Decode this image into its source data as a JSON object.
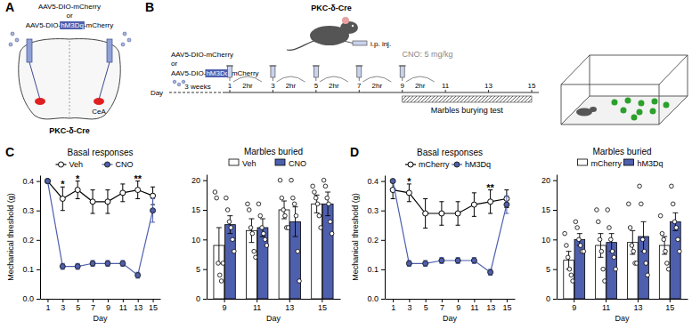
{
  "panel_labels": [
    "A",
    "B",
    "C",
    "D"
  ],
  "diagram_a": {
    "virus_1": "AAV5-DIO-mCherry",
    "or": "or",
    "virus_2": [
      "AAV5-DIO-",
      "hM3Dq",
      "-mCherry"
    ],
    "region": "CeA",
    "mouse_line": "PKC-δ-Cre"
  },
  "diagram_b": {
    "virus_1": "AAV5-DIO-mCherry",
    "or": "or",
    "virus_2": [
      "AAV5-DIO-",
      "hM3Dq",
      "-mCherry"
    ],
    "mouse_line": "PKC-δ-Cre",
    "route": "i.p. inj.",
    "dose": "CNO: 5 mg/kg",
    "day_label": "Day",
    "wait": "3 weeks",
    "interval": "2hr",
    "days": [
      1,
      3,
      5,
      7,
      9,
      11,
      13,
      15
    ],
    "injection_days": [
      1,
      3,
      5,
      7,
      9
    ],
    "test_days": [
      9,
      15
    ],
    "test": "Marbles burying test"
  },
  "chart_data": [
    {
      "type": "line",
      "title": "Basal responses",
      "x_label": "Day",
      "y_label": "Mechanical threshold (g)",
      "x": [
        1,
        3,
        5,
        7,
        9,
        11,
        13,
        15
      ],
      "xlim": [
        0,
        16
      ],
      "xticks": [
        1,
        3,
        5,
        7,
        9,
        11,
        13,
        15
      ],
      "ylim": [
        0,
        0.42
      ],
      "yticks": [
        {
          "value": 0,
          "label": "0.0"
        },
        {
          "value": 0.1,
          "label": "0.1"
        },
        {
          "value": 0.2,
          "label": "0.2"
        },
        {
          "value": 0.3,
          "label": "0.3"
        },
        {
          "value": 0.4,
          "label": "0.4"
        }
      ],
      "legend": "top",
      "series": [
        {
          "name": "Veh",
          "color": "#000000",
          "marker": "open-circle",
          "values": [
            0.4,
            0.34,
            0.37,
            0.33,
            0.33,
            0.36,
            0.37,
            0.35
          ],
          "errors": [
            0,
            0.04,
            0.03,
            0.04,
            0.04,
            0.03,
            0.03,
            0.03
          ]
        },
        {
          "name": "CNO",
          "color": "#4e5fae",
          "marker": "filled-circle",
          "values": [
            0.4,
            0.11,
            0.11,
            0.12,
            0.12,
            0.12,
            0.08,
            0.3
          ],
          "errors": [
            0,
            0.01,
            0.01,
            0.01,
            0.01,
            0.01,
            0.01,
            0.04
          ]
        }
      ],
      "annotations": [
        {
          "x": 3,
          "text": "*"
        },
        {
          "x": 5,
          "text": "*"
        },
        {
          "x": 13,
          "text": "**"
        }
      ]
    },
    {
      "type": "bar",
      "title": "Marbles buried",
      "x_label": "Day",
      "categories": [
        "9",
        "11",
        "13",
        "15"
      ],
      "ylim": [
        0,
        21
      ],
      "yticks": [
        0,
        5,
        10,
        15,
        20
      ],
      "legend": "top",
      "series": [
        {
          "name": "Veh",
          "color": "#ffffff",
          "values": [
            9,
            11.5,
            15,
            16
          ],
          "errors": [
            3,
            2,
            1.5,
            1.5
          ],
          "points": [
            [
              18,
              17,
              6,
              4,
              3,
              6
            ],
            [
              16,
              15,
              12,
              11,
              8,
              7
            ],
            [
              20,
              17,
              15,
              14,
              12,
              12
            ],
            [
              19,
              18,
              17,
              16,
              14,
              12
            ]
          ]
        },
        {
          "name": "CNO",
          "color": "#4e5fae",
          "values": [
            12.5,
            12,
            13,
            16
          ],
          "errors": [
            1.5,
            1.5,
            2.5,
            2
          ],
          "points": [
            [
              17,
              15,
              13,
              12,
              10,
              8
            ],
            [
              16,
              14,
              12,
              11,
              10,
              9
            ],
            [
              20,
              17,
              16,
              14,
              8,
              3
            ],
            [
              20,
              19,
              17,
              16,
              13,
              11
            ]
          ]
        }
      ]
    },
    {
      "type": "line",
      "title": "Basal responses",
      "x_label": "Day",
      "y_label": "Mechanical threshold (g)",
      "x": [
        1,
        3,
        5,
        7,
        9,
        11,
        13,
        15
      ],
      "xlim": [
        0,
        16
      ],
      "xticks": [
        1,
        3,
        5,
        7,
        9,
        11,
        13,
        15
      ],
      "ylim": [
        0,
        0.42
      ],
      "yticks": [
        {
          "value": 0,
          "label": "0.0"
        },
        {
          "value": 0.1,
          "label": "0.1"
        },
        {
          "value": 0.2,
          "label": "0.2"
        },
        {
          "value": 0.3,
          "label": "0.3"
        },
        {
          "value": 0.4,
          "label": "0.4"
        }
      ],
      "legend": "top",
      "series": [
        {
          "name": "mCherry",
          "color": "#000000",
          "marker": "open-circle",
          "values": [
            0.37,
            0.36,
            0.29,
            0.29,
            0.29,
            0.32,
            0.33,
            0.34
          ],
          "errors": [
            0.03,
            0.03,
            0.05,
            0.04,
            0.04,
            0.04,
            0.04,
            0.03
          ]
        },
        {
          "name": "hM3Dq",
          "color": "#4e5fae",
          "marker": "filled-circle",
          "values": [
            0.4,
            0.12,
            0.12,
            0.13,
            0.13,
            0.13,
            0.09,
            0.32
          ],
          "errors": [
            0,
            0.01,
            0.01,
            0.01,
            0.01,
            0.01,
            0.01,
            0.03
          ]
        }
      ],
      "annotations": [
        {
          "x": 3,
          "text": "*"
        },
        {
          "x": 13,
          "text": "**"
        }
      ]
    },
    {
      "type": "bar",
      "title": "Marbles buried",
      "x_label": "Day",
      "categories": [
        "9",
        "11",
        "13",
        "15"
      ],
      "ylim": [
        0,
        21
      ],
      "yticks": [
        0,
        5,
        10,
        15,
        20
      ],
      "legend": "top",
      "series": [
        {
          "name": "mCherry",
          "color": "#ffffff",
          "values": [
            6.5,
            9,
            9.5,
            9
          ],
          "errors": [
            1.5,
            2,
            2,
            1.5
          ],
          "points": [
            [
              11,
              9,
              7,
              5,
              4,
              3
            ],
            [
              15,
              13,
              10,
              8,
              5,
              3
            ],
            [
              16,
              12,
              9,
              8,
              6,
              6
            ],
            [
              14,
              11,
              10,
              8,
              6,
              5
            ]
          ]
        },
        {
          "name": "hM3Dq",
          "color": "#4e5fae",
          "values": [
            10,
            9.5,
            10.5,
            13
          ],
          "errors": [
            1,
            1.5,
            2.5,
            1.5
          ],
          "points": [
            [
              13,
              12,
              10,
              9,
              8,
              8
            ],
            [
              15,
              12,
              10,
              8,
              7,
              5
            ],
            [
              19,
              16,
              10,
              8,
              6,
              4
            ],
            [
              19,
              16,
              13,
              12,
              10,
              8
            ]
          ]
        }
      ]
    }
  ]
}
